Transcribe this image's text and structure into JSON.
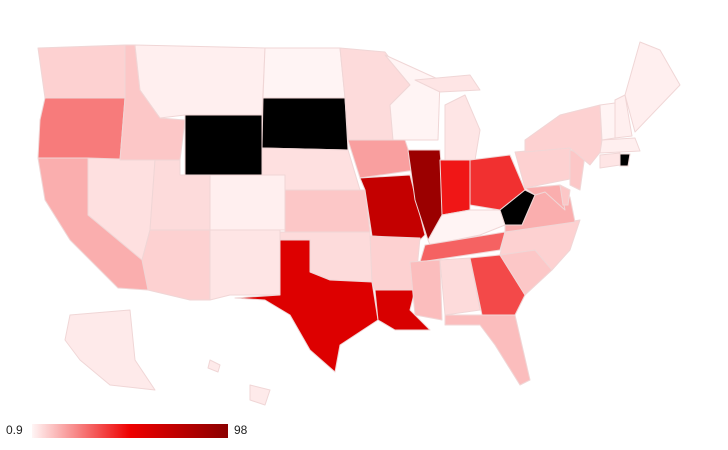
{
  "chart_data": {
    "type": "choropleth",
    "values": [
      8,
      25,
      15,
      5,
      10,
      2,
      null,
      6,
      8,
      2,
      4,
      1,
      null,
      5,
      10,
      6,
      58,
      6,
      18,
      70,
      8,
      60,
      1,
      90,
      4,
      45,
      40,
      1,
      30,
      12,
      6,
      35,
      12,
      10,
      8,
      15,
      null,
      15,
      10,
      8,
      10,
      8,
      4,
      null,
      2,
      1,
      2,
      2,
      3,
      3
    ],
    "colorAxis": {
      "min": 0.9,
      "max": 98,
      "colors": [
        "#fff5f5",
        "#ee0000",
        "#8b0000"
      ]
    },
    "noDataColor": "#000000",
    "legend": "bottom-left"
  }
}
